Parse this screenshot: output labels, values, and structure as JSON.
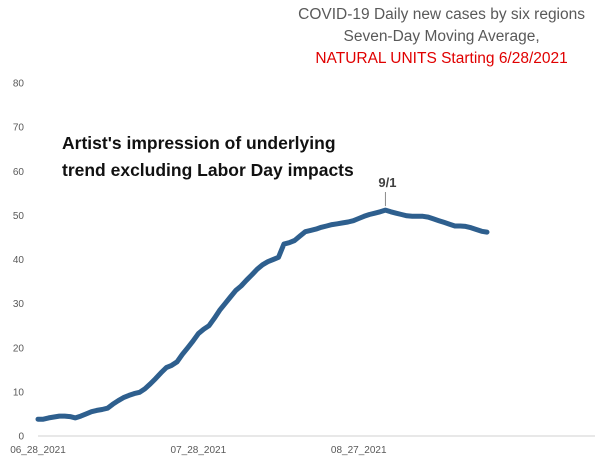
{
  "chart_data": {
    "type": "line",
    "title_lines": [
      "COVID-19 Daily new cases by six regions",
      "Seven-Day Moving Average,",
      "NATURAL UNITS Starting 6/28/2021"
    ],
    "title_line_colors": [
      "#595959",
      "#595959",
      "#e00000"
    ],
    "annotation_lines": [
      "Artist's impression of underlying",
      "trend excluding Labor Day impacts"
    ],
    "callout": {
      "label": "9/1",
      "x_index": 65
    },
    "xlabel": "",
    "ylabel": "",
    "ylim": [
      0,
      80
    ],
    "yticks": [
      0,
      10,
      20,
      30,
      40,
      50,
      60,
      70,
      80
    ],
    "xtick_labels": [
      {
        "label": "06_28_2021",
        "index": 0
      },
      {
        "label": "07_28_2021",
        "index": 30
      },
      {
        "label": "08_27_2021",
        "index": 60
      }
    ],
    "grid": false,
    "line_color": "#2e5f8e",
    "series": [
      {
        "values": [
          3.8,
          3.8,
          4.1,
          4.3,
          4.5,
          4.5,
          4.4,
          4.1,
          4.5,
          5.0,
          5.5,
          5.8,
          6.0,
          6.3,
          7.2,
          8.0,
          8.7,
          9.2,
          9.6,
          9.9,
          10.7,
          11.8,
          13.0,
          14.3,
          15.5,
          16.0,
          16.8,
          18.5,
          20.0,
          21.5,
          23.2,
          24.2,
          25.0,
          26.7,
          28.5,
          30.0,
          31.5,
          33.0,
          34.0,
          35.3,
          36.5,
          37.8,
          38.8,
          39.5,
          40.0,
          40.5,
          43.5,
          43.8,
          44.3,
          45.3,
          46.3,
          46.6,
          46.9,
          47.3,
          47.6,
          47.9,
          48.1,
          48.3,
          48.5,
          48.8,
          49.3,
          49.8,
          50.2,
          50.5,
          50.8,
          51.2,
          50.8,
          50.5,
          50.2,
          49.9,
          49.8,
          49.8,
          49.8,
          49.6,
          49.2,
          48.8,
          48.4,
          48.0,
          47.6,
          47.6,
          47.5,
          47.2,
          46.8,
          46.4,
          46.2
        ]
      }
    ]
  }
}
